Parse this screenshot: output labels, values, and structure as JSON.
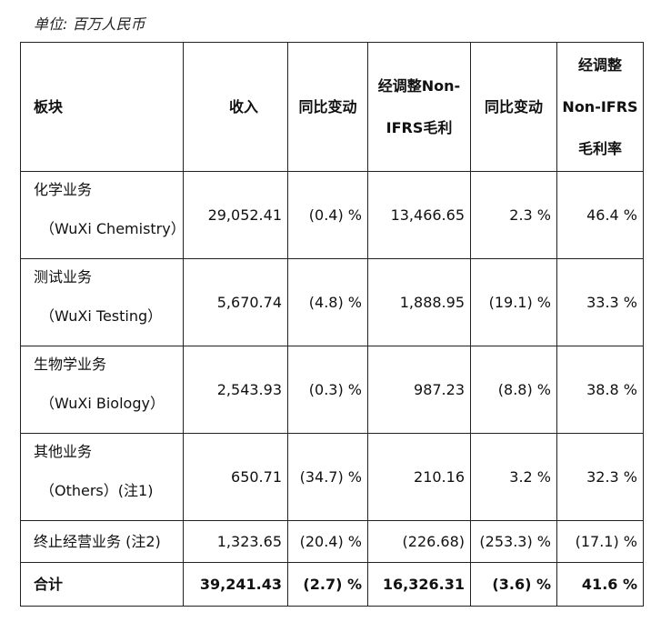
{
  "unit_note": "单位: 百万人民币",
  "headers": {
    "segment": "板块",
    "revenue": "收入",
    "revenue_yoy": "同比变动",
    "gp_line1": "经调整Non-",
    "gp_line2": "IFRS毛利",
    "gp_yoy": "同比变动",
    "gm_line1": "经调整",
    "gm_line2": "Non-IFRS",
    "gm_line3": "毛利率"
  },
  "rows": [
    {
      "cn": "化学业务",
      "en": "（WuXi Chemistry）",
      "revenue": "29,052.41",
      "revenue_yoy": "(0.4) %",
      "gp": "13,466.65",
      "gp_yoy": "2.3 %",
      "gm": "46.4 %"
    },
    {
      "cn": "测试业务",
      "en": "（WuXi Testing）",
      "revenue": "5,670.74",
      "revenue_yoy": "(4.8) %",
      "gp": "1,888.95",
      "gp_yoy": "(19.1) %",
      "gm": "33.3 %"
    },
    {
      "cn": "生物学业务",
      "en": "（WuXi Biology）",
      "revenue": "2,543.93",
      "revenue_yoy": "(0.3) %",
      "gp": "987.23",
      "gp_yoy": "(8.8) %",
      "gm": "38.8 %"
    },
    {
      "cn": "其他业务",
      "en": "（Others）(注1)",
      "revenue": "650.71",
      "revenue_yoy": "(34.7) %",
      "gp": "210.16",
      "gp_yoy": "3.2 %",
      "gm": "32.3 %"
    }
  ],
  "discontinued": {
    "label": "终止经营业务 (注2)",
    "revenue": "1,323.65",
    "revenue_yoy": "(20.4) %",
    "gp": "(226.68)",
    "gp_yoy": "(253.3) %",
    "gm": "(17.1) %"
  },
  "total": {
    "label": "合计",
    "revenue": "39,241.43",
    "revenue_yoy": "(2.7) %",
    "gp": "16,326.31",
    "gp_yoy": "(3.6) %",
    "gm": "41.6 %"
  }
}
